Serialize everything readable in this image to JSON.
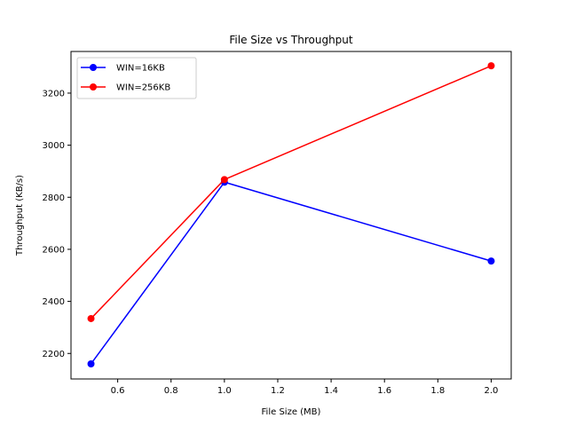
{
  "chart_data": {
    "type": "line",
    "title": "File Size vs Throughput",
    "xlabel": "File Size (MB)",
    "ylabel": "Throughput (KB/s)",
    "xlim": [
      0.425,
      2.075
    ],
    "ylim": [
      2102,
      3360
    ],
    "xticks": [
      0.6,
      0.8,
      1.0,
      1.2,
      1.4,
      1.6,
      1.8,
      2.0
    ],
    "xtick_labels": [
      "0.6",
      "0.8",
      "1.0",
      "1.2",
      "1.4",
      "1.6",
      "1.8",
      "2.0"
    ],
    "yticks": [
      2200,
      2400,
      2600,
      2800,
      3000,
      3200
    ],
    "ytick_labels": [
      "2200",
      "2400",
      "2600",
      "2800",
      "3000",
      "3200"
    ],
    "grid": false,
    "legend_position": "upper-left",
    "x": [
      0.5,
      1.0,
      2.0
    ],
    "series": [
      {
        "name": "WIN=16KB",
        "color": "#0000ff",
        "marker": "circle",
        "values": [
          2160,
          2858,
          2555
        ]
      },
      {
        "name": "WIN=256KB",
        "color": "#ff0000",
        "marker": "circle",
        "values": [
          2334,
          2868,
          3305
        ]
      }
    ]
  }
}
